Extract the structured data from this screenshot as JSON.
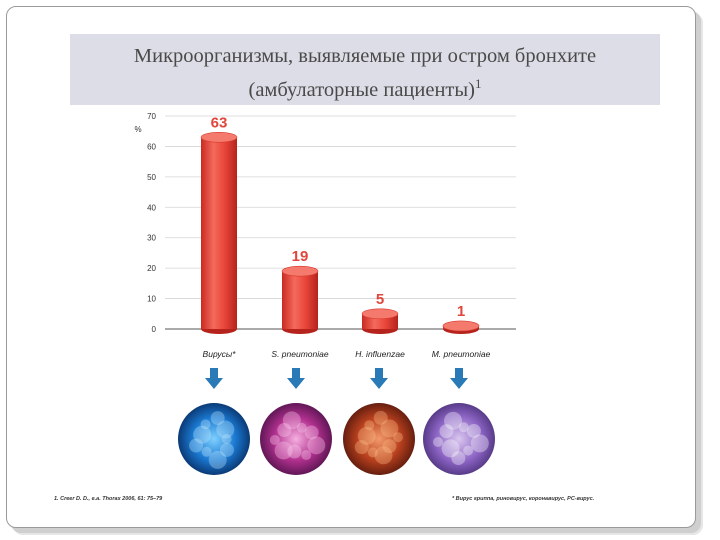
{
  "title": {
    "line1": "Микроорганизмы, выявляемые при остром бронхите",
    "line2": "(амбулаторные пациенты)",
    "superscript": "1"
  },
  "chart_data": {
    "type": "bar",
    "categories": [
      "Вирусы*",
      "S. pneumoniae",
      "H. influenzae",
      "M. pneumoniae"
    ],
    "values": [
      63,
      19,
      5,
      1
    ],
    "value_labels": [
      "63",
      "19",
      "5",
      "1"
    ],
    "ylabel": "%",
    "ylim": [
      0,
      70
    ],
    "yticks": [
      0,
      10,
      20,
      30,
      40,
      50,
      60,
      70
    ],
    "grid": true,
    "bar_color": "#e8463a"
  },
  "images": [
    "virus-micrograph",
    "s-pneumoniae-micrograph",
    "h-influenzae-micrograph",
    "m-pneumoniae-micrograph"
  ],
  "arrow_color": "#2a7ab8",
  "footnotes": {
    "left": "1. Creer D. D., e.a. Thorax 2006, 61: 75–79",
    "right": "* Вирус гриппа, риновирус, коронавирус, РС-вирус."
  }
}
